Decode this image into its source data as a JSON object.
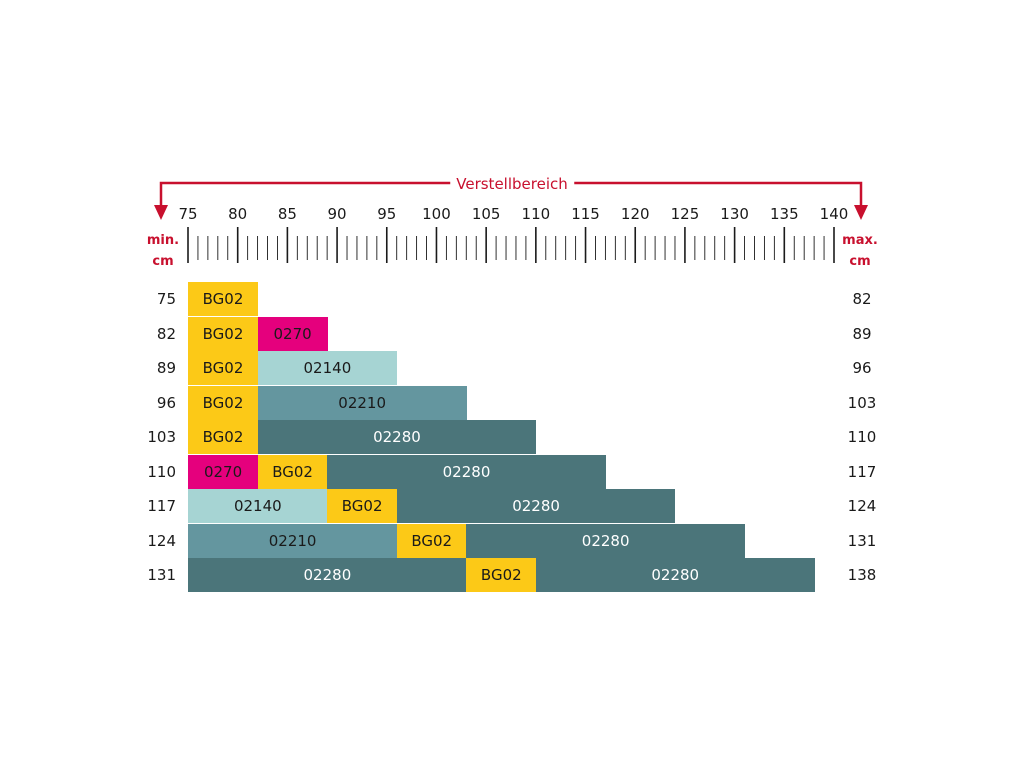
{
  "range_label": "Verstellbereich",
  "min_label": [
    "min.",
    "cm"
  ],
  "max_label": [
    "max.",
    "cm"
  ],
  "scale": {
    "start": 75,
    "end": 140,
    "step_labels": [
      75,
      80,
      85,
      90,
      95,
      100,
      105,
      110,
      115,
      120,
      125,
      130,
      135,
      140
    ]
  },
  "colors": {
    "BG02": "#fcc917",
    "0270": "#e5007d",
    "02140": "#a6d4d3",
    "02210": "#64969f",
    "02280": "#4b757a",
    "arrow": "#c8102e"
  },
  "rows": [
    {
      "min": "75",
      "max": "82",
      "segments": [
        {
          "code": "BG02",
          "from": 75,
          "to": 82
        }
      ]
    },
    {
      "min": "82",
      "max": "89",
      "segments": [
        {
          "code": "BG02",
          "from": 75,
          "to": 82
        },
        {
          "code": "0270",
          "from": 82,
          "to": 89
        }
      ]
    },
    {
      "min": "89",
      "max": "96",
      "segments": [
        {
          "code": "BG02",
          "from": 75,
          "to": 82
        },
        {
          "code": "02140",
          "from": 82,
          "to": 96
        }
      ]
    },
    {
      "min": "96",
      "max": "103",
      "segments": [
        {
          "code": "BG02",
          "from": 75,
          "to": 82
        },
        {
          "code": "02210",
          "from": 82,
          "to": 103
        }
      ]
    },
    {
      "min": "103",
      "max": "110",
      "segments": [
        {
          "code": "BG02",
          "from": 75,
          "to": 82
        },
        {
          "code": "02280",
          "from": 82,
          "to": 110
        }
      ]
    },
    {
      "min": "110",
      "max": "117",
      "segments": [
        {
          "code": "0270",
          "from": 75,
          "to": 82
        },
        {
          "code": "BG02",
          "from": 82,
          "to": 89
        },
        {
          "code": "02280",
          "from": 89,
          "to": 117
        }
      ]
    },
    {
      "min": "117",
      "max": "124",
      "segments": [
        {
          "code": "02140",
          "from": 75,
          "to": 89
        },
        {
          "code": "BG02",
          "from": 89,
          "to": 96
        },
        {
          "code": "02280",
          "from": 96,
          "to": 124
        }
      ]
    },
    {
      "min": "124",
      "max": "131",
      "segments": [
        {
          "code": "02210",
          "from": 75,
          "to": 96
        },
        {
          "code": "BG02",
          "from": 96,
          "to": 103
        },
        {
          "code": "02280",
          "from": 103,
          "to": 131
        }
      ]
    },
    {
      "min": "131",
      "max": "138",
      "segments": [
        {
          "code": "02280",
          "from": 75,
          "to": 103
        },
        {
          "code": "BG02",
          "from": 103,
          "to": 110
        },
        {
          "code": "02280",
          "from": 110,
          "to": 138
        }
      ]
    }
  ]
}
